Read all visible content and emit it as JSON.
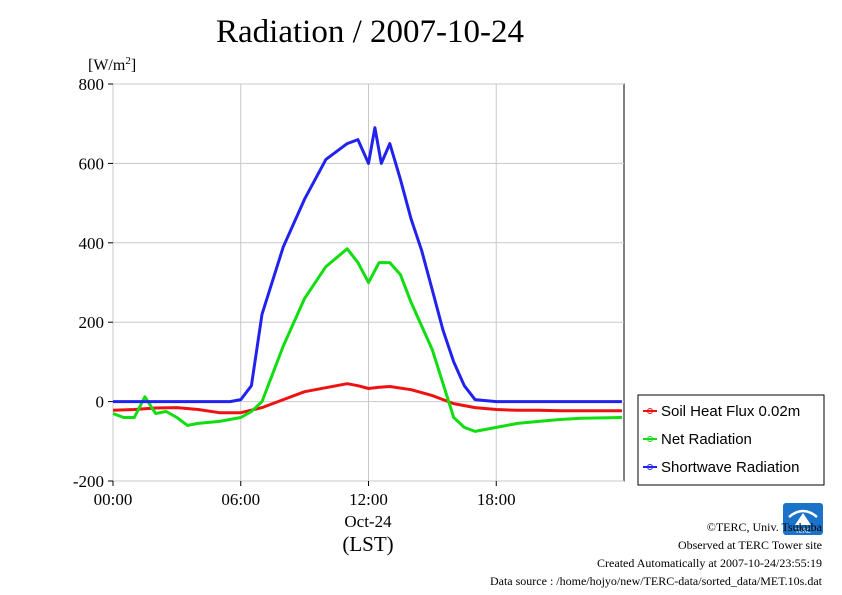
{
  "title": "Radiation / 2007-10-24",
  "footer": {
    "copyright": "©TERC, Univ. Tsukuba",
    "observed": "Observed at TERC Tower site",
    "created": "Created Automatically at 2007-10-24/23:55:19",
    "source": "Data source : /home/hojyo/new/TERC-data/sorted_data/MET.10s.dat"
  },
  "logo": {
    "text": "TERC",
    "color": "#1a73c8"
  },
  "chart_data": {
    "type": "line",
    "title": "Radiation / 2007-10-24",
    "ylabel_text": "[W/m",
    "ylabel_sup": "2",
    "ylabel_close": "]",
    "xlabel_date": "Oct-24",
    "xlabel_unit": "(LST)",
    "xlim": [
      0,
      24
    ],
    "ylim": [
      -200,
      800
    ],
    "x_ticks": [
      {
        "value": 0,
        "label": "00:00"
      },
      {
        "value": 6,
        "label": "06:00"
      },
      {
        "value": 12,
        "label": "12:00"
      },
      {
        "value": 18,
        "label": "18:00"
      }
    ],
    "y_ticks": [
      {
        "value": -200,
        "label": "-200"
      },
      {
        "value": 0,
        "label": "0"
      },
      {
        "value": 200,
        "label": "200"
      },
      {
        "value": 400,
        "label": "400"
      },
      {
        "value": 600,
        "label": "600"
      },
      {
        "value": 800,
        "label": "800"
      }
    ],
    "grid": true,
    "legend_position": "right-bottom",
    "series": [
      {
        "name": "Soil Heat Flux 0.02m",
        "color": "#ee1111",
        "x": [
          0,
          1,
          2,
          3,
          4,
          5,
          6,
          7,
          8,
          9,
          10,
          11,
          11.5,
          12,
          12.5,
          13,
          14,
          15,
          16,
          17,
          18,
          19,
          20,
          21,
          22,
          23.9
        ],
        "y": [
          -22,
          -20,
          -16,
          -15,
          -20,
          -28,
          -28,
          -15,
          5,
          25,
          35,
          45,
          40,
          33,
          36,
          38,
          30,
          15,
          -5,
          -15,
          -20,
          -22,
          -22,
          -23,
          -23,
          -23
        ]
      },
      {
        "name": "Net Radiation",
        "color": "#11dd11",
        "x": [
          0,
          0.5,
          1,
          1.5,
          2,
          2.5,
          3,
          3.5,
          4,
          5,
          6,
          6.5,
          7,
          8,
          9,
          10,
          11,
          11.5,
          12,
          12.5,
          13,
          13.5,
          14,
          15,
          16,
          16.5,
          17,
          18,
          19,
          20,
          21,
          22,
          23.9
        ],
        "y": [
          -30,
          -40,
          -40,
          12,
          -30,
          -25,
          -40,
          -60,
          -55,
          -50,
          -40,
          -25,
          0,
          140,
          260,
          340,
          385,
          350,
          300,
          350,
          350,
          320,
          250,
          130,
          -40,
          -65,
          -75,
          -65,
          -55,
          -50,
          -45,
          -42,
          -40
        ]
      },
      {
        "name": "Shortwave Radiation",
        "color": "#2222ee",
        "x": [
          0,
          2,
          4,
          5.5,
          6,
          6.5,
          7,
          8,
          9,
          10,
          11,
          11.5,
          12,
          12.3,
          12.6,
          13,
          13.5,
          14,
          14.5,
          15,
          15.5,
          16,
          16.5,
          17,
          18,
          20,
          22,
          23.9
        ],
        "y": [
          0,
          0,
          0,
          0,
          5,
          40,
          220,
          390,
          510,
          610,
          650,
          660,
          600,
          690,
          600,
          650,
          560,
          460,
          380,
          280,
          180,
          100,
          40,
          5,
          0,
          0,
          0,
          0
        ]
      }
    ]
  }
}
